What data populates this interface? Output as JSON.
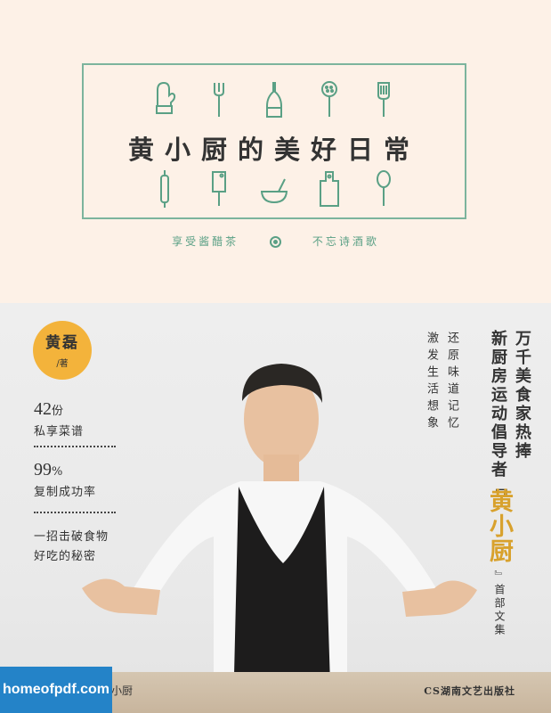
{
  "book": {
    "title": "黄小厨的美好日常",
    "tagline_left": "享受酱醋茶",
    "tagline_right": "不忘诗酒歌"
  },
  "icons_top": [
    "oven-mitt-icon",
    "fork-icon",
    "oil-bottle-icon",
    "skimmer-icon",
    "spatula-icon"
  ],
  "icons_bottom": [
    "rolling-pin-icon",
    "cleaver-icon",
    "mixing-bowl-icon",
    "cutting-board-icon",
    "ladle-icon"
  ],
  "author": {
    "name": "黄磊",
    "by": "/著"
  },
  "stats": [
    {
      "num": "42",
      "unit": "份",
      "text": "私享菜谱"
    },
    {
      "num": "99",
      "unit": "%",
      "text": "复制成功率"
    }
  ],
  "secret_line1": "一招击破食物",
  "secret_line2": "好吃的秘密",
  "vertical": {
    "col_recall": "还原味道记忆",
    "col_spark": "激发生活想象",
    "col_fans": "万千美食家热捧",
    "col_movement": "新厨房运动倡导者『",
    "highlight": "黄小厨",
    "tail": "』首部文集"
  },
  "brand_small": "小厨",
  "publisher": "CS湖南文艺出版社",
  "watermark": "homeofpdf.com",
  "colors": {
    "accent_green": "#7cb49d",
    "badge_yellow": "#f3b33b",
    "highlight_gold": "#d8a12c",
    "watermark_blue": "#2483c8"
  }
}
